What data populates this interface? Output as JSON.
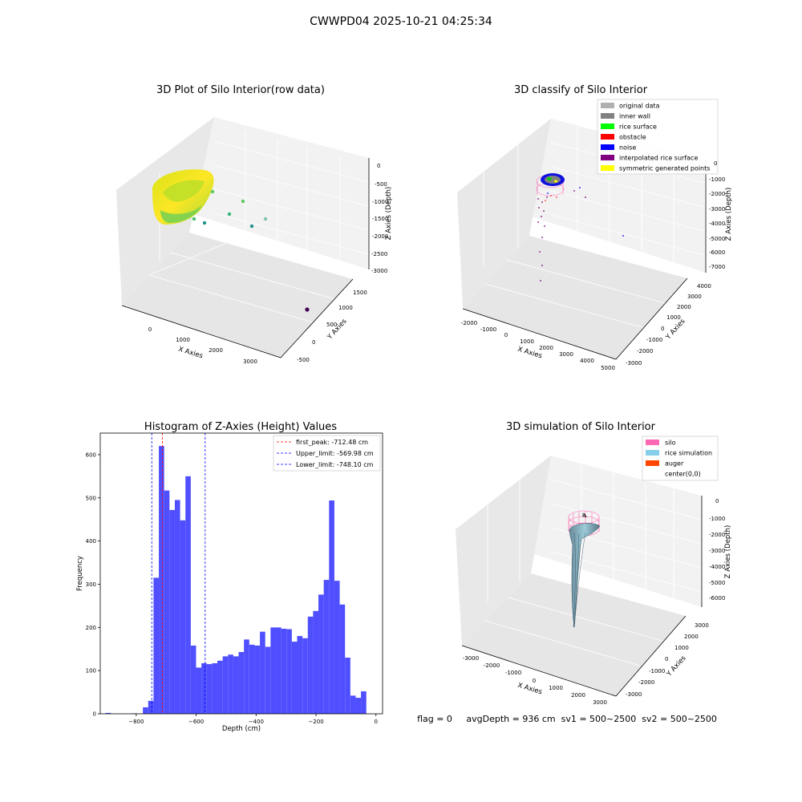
{
  "suptitle": "CWWPD04 2025-10-21 04:25:34",
  "status_line": "flag = 0     avgDepth = 936 cm  sv1 = 500~2500  sv2 = 500~2500",
  "colors": {
    "hist_bar": "#4f4fff",
    "first_peak": "#ff0000",
    "limits": "#0000ff",
    "pane": "#f2f2f2",
    "silo": "#ff69b4",
    "rice_simulation": "#87ceeb",
    "auger": "#ff4500"
  },
  "chart_data": [
    {
      "type": "scatter3d",
      "title": "3D Plot of Silo Interior(row data)",
      "xlabel": "X Axies",
      "ylabel": "Y Axies",
      "zlabel": "Z Axies (Depth)",
      "xticks": [
        "0",
        "1000",
        "2000",
        "3000"
      ],
      "yticks": [
        "-500",
        "0",
        "500",
        "1000",
        "1500"
      ],
      "zticks": [
        "0",
        "-500",
        "-1000",
        "-1500",
        "-2000",
        "-2500",
        "-3000"
      ],
      "colormap": "viridis",
      "outlier_points": [
        {
          "x": 900,
          "y": 300,
          "z": -800
        },
        {
          "x": 1600,
          "y": 900,
          "z": -1000
        },
        {
          "x": 1700,
          "y": 700,
          "z": -1450
        },
        {
          "x": 1950,
          "y": 1100,
          "z": -1300
        },
        {
          "x": 2300,
          "y": 500,
          "z": -1500
        },
        {
          "x": 2400,
          "y": 1050,
          "z": -1600
        },
        {
          "x": 3200,
          "y": -200,
          "z": -2900
        }
      ]
    },
    {
      "type": "scatter3d",
      "title": "3D classify of Silo Interior",
      "xlabel": "X Axies",
      "ylabel": "Y Axies",
      "zlabel": "Z Axies (Depth)",
      "xticks": [
        "-2000",
        "-1000",
        "0",
        "1000",
        "2000",
        "3000",
        "4000",
        "5000"
      ],
      "yticks": [
        "-3000",
        "-2000",
        "-1000",
        "0",
        "1000",
        "2000",
        "3000",
        "4000"
      ],
      "zticks": [
        "0",
        "-1000",
        "-2000",
        "-3000",
        "-4000",
        "-5000",
        "-6000",
        "-7000"
      ],
      "legend": [
        {
          "label": "original data",
          "color": "#b0b0b0"
        },
        {
          "label": "inner wall",
          "color": "#808080"
        },
        {
          "label": "rice surface",
          "color": "#00ff00"
        },
        {
          "label": "obstacle",
          "color": "#ff0000"
        },
        {
          "label": "noise",
          "color": "#0000ff"
        },
        {
          "label": "interpolated rice surface",
          "color": "#800080"
        },
        {
          "label": "symmetric generated points",
          "color": "#ffff00"
        }
      ],
      "legend_loc": "upper right"
    },
    {
      "type": "bar",
      "title": "Histogram of Z-Axies (Height) Values",
      "xlabel": "Depth (cm)",
      "ylabel": "Frequency",
      "xlim": [
        -920,
        22
      ],
      "ylim": [
        0,
        650
      ],
      "xticks": [
        -800,
        -600,
        -400,
        -200,
        0
      ],
      "yticks": [
        0,
        100,
        200,
        300,
        400,
        500,
        600
      ],
      "bin_start": -902,
      "bin_width": 17.75,
      "counts": [
        2,
        0,
        0,
        0,
        0,
        1,
        0,
        15,
        30,
        315,
        620,
        517,
        472,
        495,
        448,
        550,
        158,
        107,
        117,
        115,
        117,
        123,
        133,
        137,
        133,
        143,
        172,
        160,
        158,
        190,
        155,
        200,
        200,
        197,
        196,
        167,
        180,
        175,
        225,
        238,
        276,
        310,
        494,
        308,
        253,
        130,
        42,
        37,
        52
      ],
      "vlines": [
        {
          "label": "first_peak: -712.48 cm",
          "x": -712.48,
          "color": "#ff0000"
        },
        {
          "label": "Upper_limit: -569.98 cm",
          "x": -569.98,
          "color": "#0000ff"
        },
        {
          "label": "Lower_limit: -748.10 cm",
          "x": -748.1,
          "color": "#0000ff"
        }
      ],
      "legend_loc": "upper right"
    },
    {
      "type": "surface3d",
      "title": "3D simulation of Silo Interior",
      "xlabel": "X Axies",
      "ylabel": "Y Axies",
      "zlabel": "Z Axies (Depth)",
      "xticks": [
        "-3000",
        "-2000",
        "-1000",
        "0",
        "1000",
        "2000",
        "3000"
      ],
      "yticks": [
        "-3000",
        "-2000",
        "-1000",
        "0",
        "1000",
        "2000",
        "3000"
      ],
      "zticks": [
        "0",
        "-1000",
        "-2000",
        "-3000",
        "-4000",
        "-5000",
        "-6000"
      ],
      "legend": [
        {
          "label": "silo",
          "color": "#ff69b4"
        },
        {
          "label": "rice simulation",
          "color": "#87ceeb"
        },
        {
          "label": "auger",
          "color": "#ff4500"
        },
        {
          "label": "center(0,0)",
          "color": ""
        }
      ],
      "legend_loc": "upper right"
    }
  ]
}
